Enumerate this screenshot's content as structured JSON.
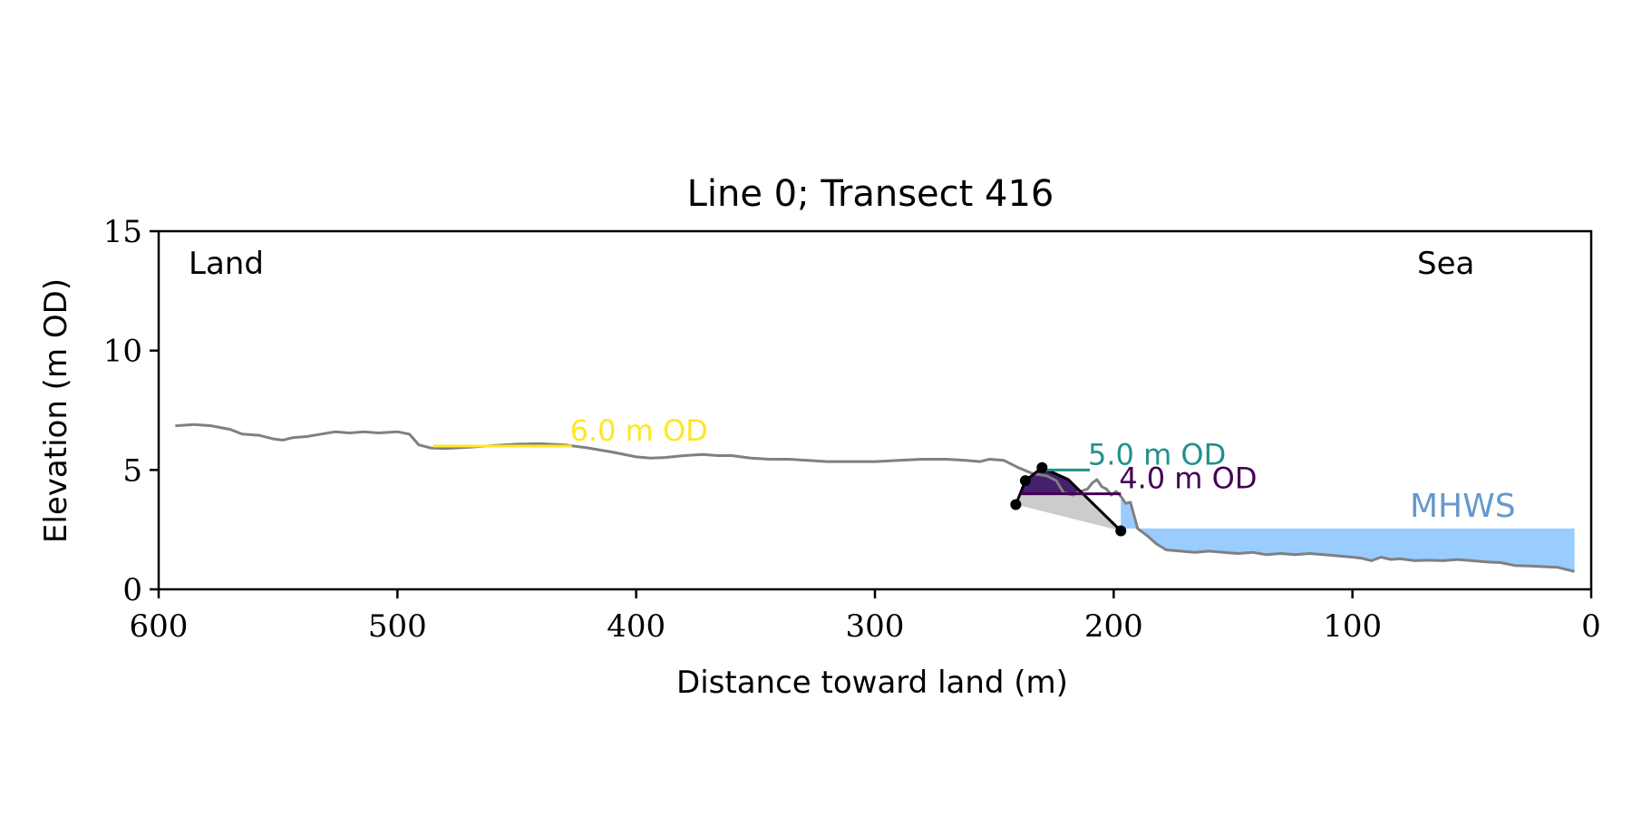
{
  "chart_data": {
    "type": "line",
    "title": "Line 0; Transect 416",
    "xlabel": "Distance toward land (m)",
    "ylabel": "Elevation (m OD)",
    "xlim": [
      600,
      0
    ],
    "ylim": [
      0,
      15
    ],
    "x_reversed": true,
    "xticks": [
      600,
      500,
      400,
      300,
      200,
      100,
      0
    ],
    "yticks": [
      0,
      5,
      10,
      15
    ],
    "grid": false,
    "annotations": {
      "land": "Land",
      "sea": "Sea",
      "mhws_label": "MHWS"
    },
    "mhws": {
      "level": 2.55,
      "from_x": 197,
      "to_x": 7,
      "color": "#99ccff",
      "label_color": "#6699cc"
    },
    "profile": {
      "color": "#808080",
      "points": [
        [
          593,
          6.85
        ],
        [
          585,
          6.9
        ],
        [
          578,
          6.85
        ],
        [
          570,
          6.7
        ],
        [
          565,
          6.5
        ],
        [
          558,
          6.45
        ],
        [
          552,
          6.3
        ],
        [
          548,
          6.25
        ],
        [
          544,
          6.35
        ],
        [
          538,
          6.4
        ],
        [
          532,
          6.5
        ],
        [
          526,
          6.6
        ],
        [
          520,
          6.55
        ],
        [
          514,
          6.6
        ],
        [
          508,
          6.55
        ],
        [
          500,
          6.6
        ],
        [
          495,
          6.5
        ],
        [
          491,
          6.05
        ],
        [
          486,
          5.92
        ],
        [
          480,
          5.9
        ],
        [
          470,
          5.95
        ],
        [
          460,
          6.02
        ],
        [
          450,
          6.08
        ],
        [
          440,
          6.1
        ],
        [
          430,
          6.05
        ],
        [
          420,
          5.92
        ],
        [
          410,
          5.75
        ],
        [
          400,
          5.55
        ],
        [
          394,
          5.5
        ],
        [
          388,
          5.52
        ],
        [
          380,
          5.6
        ],
        [
          372,
          5.65
        ],
        [
          366,
          5.6
        ],
        [
          360,
          5.6
        ],
        [
          352,
          5.5
        ],
        [
          344,
          5.45
        ],
        [
          336,
          5.45
        ],
        [
          328,
          5.4
        ],
        [
          320,
          5.35
        ],
        [
          312,
          5.35
        ],
        [
          300,
          5.35
        ],
        [
          290,
          5.4
        ],
        [
          280,
          5.45
        ],
        [
          270,
          5.45
        ],
        [
          262,
          5.4
        ],
        [
          256,
          5.35
        ],
        [
          252,
          5.45
        ],
        [
          246,
          5.4
        ],
        [
          240,
          5.1
        ],
        [
          234,
          4.85
        ],
        [
          228,
          4.75
        ],
        [
          224,
          4.55
        ],
        [
          221,
          4.05
        ],
        [
          217,
          3.95
        ],
        [
          214,
          4.1
        ],
        [
          211,
          4.2
        ],
        [
          209,
          4.45
        ],
        [
          207,
          4.6
        ],
        [
          205,
          4.3
        ],
        [
          203,
          4.2
        ],
        [
          201,
          3.95
        ],
        [
          199,
          4.1
        ],
        [
          197,
          3.9
        ],
        [
          195,
          3.6
        ],
        [
          193,
          3.65
        ],
        [
          190,
          2.55
        ],
        [
          186,
          2.25
        ],
        [
          182,
          1.9
        ],
        [
          178,
          1.65
        ],
        [
          172,
          1.6
        ],
        [
          166,
          1.55
        ],
        [
          160,
          1.6
        ],
        [
          154,
          1.55
        ],
        [
          148,
          1.5
        ],
        [
          142,
          1.55
        ],
        [
          136,
          1.45
        ],
        [
          130,
          1.5
        ],
        [
          124,
          1.45
        ],
        [
          118,
          1.5
        ],
        [
          112,
          1.45
        ],
        [
          106,
          1.4
        ],
        [
          100,
          1.35
        ],
        [
          96,
          1.3
        ],
        [
          92,
          1.2
        ],
        [
          88,
          1.35
        ],
        [
          84,
          1.25
        ],
        [
          80,
          1.28
        ],
        [
          74,
          1.2
        ],
        [
          68,
          1.22
        ],
        [
          62,
          1.2
        ],
        [
          56,
          1.25
        ],
        [
          50,
          1.2
        ],
        [
          44,
          1.15
        ],
        [
          38,
          1.12
        ],
        [
          32,
          1.0
        ],
        [
          26,
          0.98
        ],
        [
          20,
          0.95
        ],
        [
          14,
          0.92
        ],
        [
          7,
          0.75
        ]
      ]
    },
    "dune_polygon": [
      [
        241,
        3.55
      ],
      [
        237,
        4.55
      ],
      [
        230,
        5.1
      ],
      [
        219,
        4.6
      ],
      [
        197,
        2.45
      ]
    ],
    "dune_outline": [
      [
        241,
        3.55
      ],
      [
        237,
        4.55
      ],
      [
        230,
        5.1
      ],
      [
        219,
        4.6
      ],
      [
        197,
        2.45
      ]
    ],
    "dune_points": [
      [
        241,
        3.55
      ],
      [
        237,
        4.55
      ],
      [
        230,
        5.1
      ],
      [
        197,
        2.45
      ]
    ],
    "dune_fills": [
      {
        "name": "above-4m",
        "color": "#44206f",
        "from": 4.0
      },
      {
        "name": "below-4m",
        "color": "#cccccc",
        "to": 4.0
      }
    ],
    "contour_lines": [
      {
        "label": "6.0 m OD",
        "color": "#fde725",
        "y": 6.0,
        "x_start": 485,
        "x_end": 427
      },
      {
        "label": "5.0 m OD",
        "color": "#21918c",
        "y": 5.0,
        "x_start": 229,
        "x_end": 210
      },
      {
        "label": "4.0 m OD",
        "color": "#440154",
        "y": 4.0,
        "x_start": 239,
        "x_end": 197
      }
    ]
  }
}
